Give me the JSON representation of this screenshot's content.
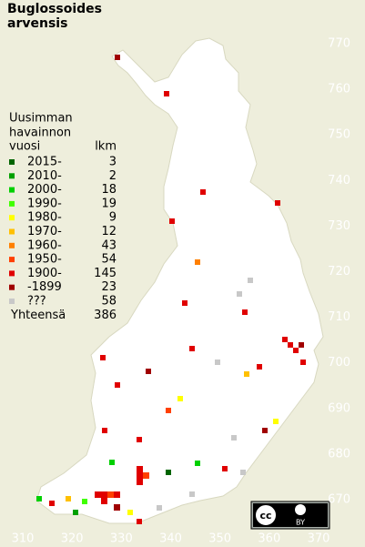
{
  "title_lines": [
    "Buglossoides",
    "arvensis"
  ],
  "legend": {
    "heading": [
      "Uusimman",
      "havainnon",
      "vuosi"
    ],
    "count_heading": "lkm",
    "rows": [
      {
        "label": "2015-",
        "count": 3,
        "color": "#006400"
      },
      {
        "label": "2010-",
        "count": 2,
        "color": "#00a000"
      },
      {
        "label": "2000-",
        "count": 18,
        "color": "#00d000"
      },
      {
        "label": "1990-",
        "count": 19,
        "color": "#40ff00"
      },
      {
        "label": "1980-",
        "count": 9,
        "color": "#ffff00"
      },
      {
        "label": "1970-",
        "count": 12,
        "color": "#ffc000"
      },
      {
        "label": "1960-",
        "count": 43,
        "color": "#ff8000"
      },
      {
        "label": "1950-",
        "count": 54,
        "color": "#ff4000"
      },
      {
        "label": "1900-",
        "count": 145,
        "color": "#e00000"
      },
      {
        "label": "-1899",
        "count": 23,
        "color": "#a00000"
      },
      {
        "label": "???",
        "count": 58,
        "color": "#c8c8c8"
      }
    ],
    "total_label": "Yhteensä",
    "total": 386
  },
  "grid": {
    "y_labels": [
      770,
      760,
      750,
      740,
      730,
      720,
      710,
      700,
      690,
      680,
      670
    ],
    "x_labels": [
      310,
      320,
      330,
      340,
      350,
      360,
      370
    ]
  },
  "license": {
    "text": "BY"
  }
}
